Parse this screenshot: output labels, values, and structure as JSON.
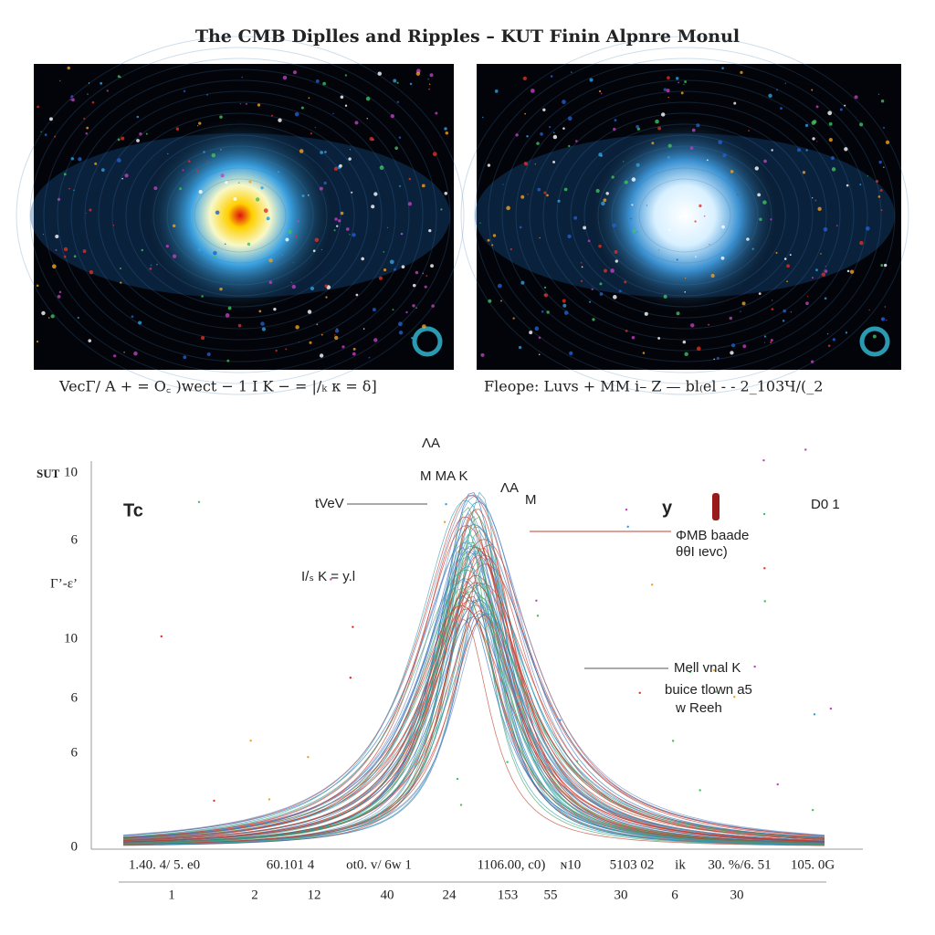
{
  "title": "The CMB Diplles and Ripples – KUT Finin Alpnre Monul",
  "panels": [
    {
      "caption": "VecΓ/ A   +  =  O꜀ )wect − 1 I K − =  |/ₖ κ = δ]"
    },
    {
      "caption": "Fleope: Luvs  +  MM i– Z —  bl₍el  - -  2_103Ч/(_2"
    }
  ],
  "plot": {
    "y_axis_title": "SUT",
    "y_labels": [
      "10",
      "6",
      "Γ’-ε’",
      "10",
      "6",
      "6",
      "0"
    ],
    "x_labels_top": [
      "1.40. 4/ 5. e0",
      "60.101  4",
      "ot0. v/ 6w 1",
      "1106.00, c0)",
      "ɴ10",
      "5103  02",
      "ik",
      "30. %/6. 51",
      "105. 0G"
    ],
    "x_labels_bottom": [
      "1",
      "2",
      "12",
      "40",
      "24",
      "153",
      "55",
      "30",
      "6",
      "30"
    ],
    "annotations": [
      "Tc",
      "tVeV",
      "ΛA",
      "M  MA  K",
      "ΛA",
      "M",
      "y",
      "D0  1",
      "ΦMB  baade",
      "θθI  ιevc)",
      "I/ₛ K = y.l",
      "Mell  vnal K",
      "buice  tlown  a5",
      "w  Reeh"
    ]
  }
}
